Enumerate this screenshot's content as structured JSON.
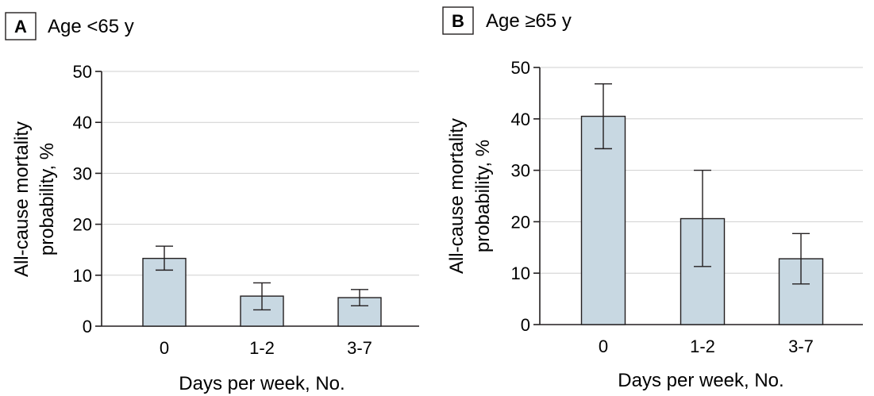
{
  "chart_data": [
    {
      "type": "bar",
      "panel": "A",
      "title": "Age <65 y",
      "xlabel": "Days per week, No.",
      "ylabel": "All-cause mortality probability, %",
      "ylabel_lines": [
        "All-cause mortality",
        "probability, %"
      ],
      "categories": [
        "0",
        "1-2",
        "3-7"
      ],
      "values": [
        13.3,
        5.9,
        5.6
      ],
      "error_low": [
        11.0,
        3.2,
        4.0
      ],
      "error_high": [
        15.7,
        8.5,
        7.2
      ],
      "ylim": [
        0,
        50
      ],
      "yticks": [
        0,
        10,
        20,
        30,
        40,
        50
      ],
      "grid": true,
      "bar_color": "#c8d8e2"
    },
    {
      "type": "bar",
      "panel": "B",
      "title": "Age ≥65 y",
      "xlabel": "Days per week, No.",
      "ylabel": "All-cause mortality probability, %",
      "ylabel_lines": [
        "All-cause mortality",
        "probability, %"
      ],
      "categories": [
        "0",
        "1-2",
        "3-7"
      ],
      "values": [
        40.5,
        20.6,
        12.8
      ],
      "error_low": [
        34.2,
        11.3,
        7.9
      ],
      "error_high": [
        46.8,
        30.0,
        17.7
      ],
      "ylim": [
        0,
        50
      ],
      "yticks": [
        0,
        10,
        20,
        30,
        40,
        50
      ],
      "grid": true,
      "bar_color": "#c8d8e2"
    }
  ]
}
